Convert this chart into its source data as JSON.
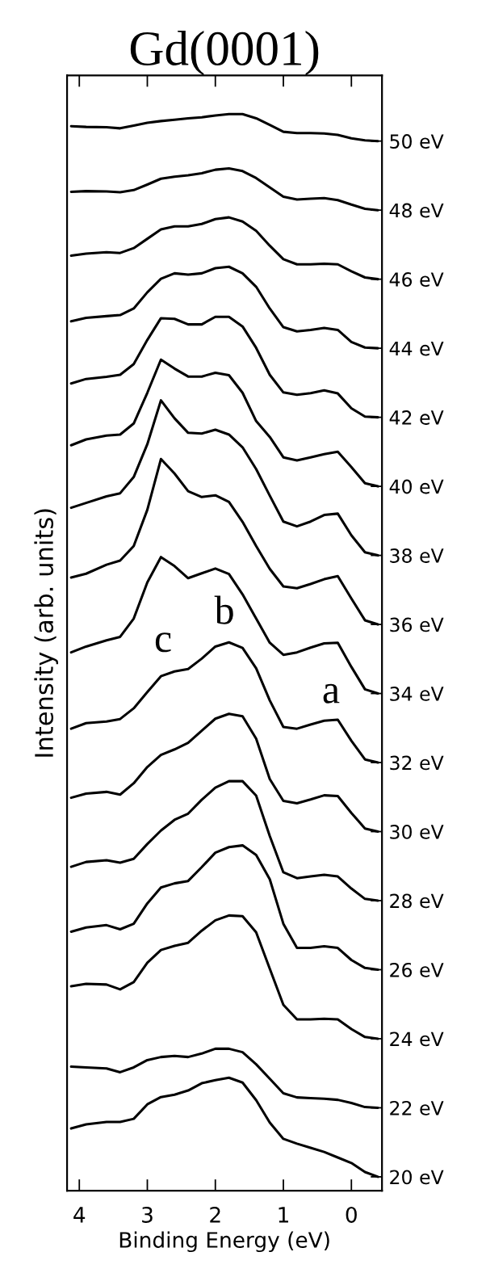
{
  "chart_data": {
    "type": "line",
    "title": "Gd(0001)",
    "xlabel": "Binding Energy (eV)",
    "ylabel": "Intensity (arb. units)",
    "x": [
      4.12,
      3.9,
      3.6,
      3.4,
      3.2,
      3.0,
      2.8,
      2.6,
      2.4,
      2.2,
      2.0,
      1.8,
      1.6,
      1.4,
      1.2,
      1.0,
      0.8,
      0.6,
      0.4,
      0.2,
      0.0,
      -0.2,
      -0.39
    ],
    "xlim": [
      4.18,
      -0.45
    ],
    "xticks": [
      4,
      3,
      2,
      1,
      0
    ],
    "ylim": [
      19.6,
      51.9
    ],
    "yticks": [
      {
        "value": 20,
        "label": "20 eV"
      },
      {
        "value": 22,
        "label": "22 eV"
      },
      {
        "value": 24,
        "label": "24 eV"
      },
      {
        "value": 26,
        "label": "26 eV"
      },
      {
        "value": 28,
        "label": "28 eV"
      },
      {
        "value": 30,
        "label": "30 eV"
      },
      {
        "value": 32,
        "label": "32 eV"
      },
      {
        "value": 34,
        "label": "34 eV"
      },
      {
        "value": 36,
        "label": "36 eV"
      },
      {
        "value": 38,
        "label": "38 eV"
      },
      {
        "value": 40,
        "label": "40 eV"
      },
      {
        "value": 42,
        "label": "42 eV"
      },
      {
        "value": 44,
        "label": "44 eV"
      },
      {
        "value": 46,
        "label": "46 eV"
      },
      {
        "value": 48,
        "label": "48 eV"
      },
      {
        "value": 50,
        "label": "50 eV"
      }
    ],
    "series": [
      {
        "color": "#000000",
        "values": [
          50.43,
          50.41,
          50.4,
          50.37,
          50.45,
          50.53,
          50.58,
          50.62,
          50.66,
          50.69,
          50.74,
          50.78,
          50.78,
          50.66,
          50.47,
          50.27,
          50.23,
          50.23,
          50.22,
          50.18,
          50.08,
          50.02,
          50.0
        ]
      },
      {
        "color": "#000000",
        "values": [
          48.53,
          48.55,
          48.54,
          48.52,
          48.58,
          48.74,
          48.91,
          48.97,
          49.01,
          49.07,
          49.17,
          49.21,
          49.13,
          48.93,
          48.66,
          48.39,
          48.31,
          48.33,
          48.35,
          48.29,
          48.16,
          48.04,
          48.0
        ]
      },
      {
        "color": "#000000",
        "values": [
          46.68,
          46.74,
          46.78,
          46.76,
          46.9,
          47.17,
          47.44,
          47.53,
          47.53,
          47.6,
          47.74,
          47.79,
          47.67,
          47.4,
          46.97,
          46.58,
          46.43,
          46.43,
          46.45,
          46.43,
          46.23,
          46.05,
          46.0
        ]
      },
      {
        "color": "#000000",
        "values": [
          44.78,
          44.88,
          44.93,
          44.96,
          45.15,
          45.62,
          46.01,
          46.17,
          46.13,
          46.17,
          46.32,
          46.36,
          46.17,
          45.78,
          45.15,
          44.61,
          44.49,
          44.53,
          44.59,
          44.53,
          44.18,
          44.02,
          44.0
        ]
      },
      {
        "color": "#000000",
        "values": [
          42.98,
          43.11,
          43.17,
          43.23,
          43.54,
          44.24,
          44.87,
          44.85,
          44.69,
          44.69,
          44.91,
          44.91,
          44.63,
          44.01,
          43.23,
          42.72,
          42.65,
          42.7,
          42.78,
          42.69,
          42.26,
          42.02,
          42.0
        ]
      },
      {
        "color": "#000000",
        "values": [
          41.19,
          41.36,
          41.47,
          41.5,
          41.82,
          42.71,
          43.67,
          43.41,
          43.18,
          43.18,
          43.29,
          43.22,
          42.71,
          41.89,
          41.43,
          40.84,
          40.75,
          40.84,
          40.93,
          41.0,
          40.56,
          40.09,
          40.0
        ]
      },
      {
        "color": "#000000",
        "values": [
          39.38,
          39.52,
          39.71,
          39.8,
          40.27,
          41.22,
          42.49,
          41.97,
          41.55,
          41.53,
          41.64,
          41.5,
          41.13,
          40.5,
          39.73,
          38.98,
          38.84,
          38.98,
          39.17,
          39.21,
          38.58,
          38.09,
          38.0
        ]
      },
      {
        "color": "#000000",
        "values": [
          37.36,
          37.47,
          37.73,
          37.85,
          38.27,
          39.32,
          40.79,
          40.37,
          39.86,
          39.69,
          39.74,
          39.55,
          38.97,
          38.27,
          37.61,
          37.1,
          37.05,
          37.17,
          37.31,
          37.4,
          36.75,
          36.12,
          36.0
        ]
      },
      {
        "color": "#000000",
        "values": [
          35.19,
          35.36,
          35.54,
          35.64,
          36.17,
          37.22,
          37.95,
          37.69,
          37.34,
          37.48,
          37.62,
          37.46,
          36.87,
          36.17,
          35.47,
          35.12,
          35.19,
          35.33,
          35.45,
          35.47,
          34.77,
          34.12,
          34.0
        ]
      },
      {
        "color": "#000000",
        "values": [
          32.98,
          33.14,
          33.19,
          33.26,
          33.57,
          34.04,
          34.5,
          34.64,
          34.71,
          35.01,
          35.36,
          35.48,
          35.32,
          34.73,
          33.8,
          33.03,
          32.98,
          33.1,
          33.21,
          33.24,
          32.63,
          32.09,
          32.0
        ]
      },
      {
        "color": "#000000",
        "values": [
          30.98,
          31.1,
          31.15,
          31.07,
          31.4,
          31.87,
          32.22,
          32.38,
          32.57,
          32.92,
          33.27,
          33.41,
          33.34,
          32.69,
          31.52,
          30.89,
          30.82,
          30.93,
          31.05,
          31.03,
          30.54,
          30.09,
          30.0
        ]
      },
      {
        "color": "#000000",
        "values": [
          28.98,
          29.12,
          29.17,
          29.1,
          29.21,
          29.64,
          30.03,
          30.34,
          30.52,
          30.92,
          31.27,
          31.46,
          31.46,
          31.04,
          29.87,
          28.82,
          28.65,
          28.7,
          28.75,
          28.7,
          28.35,
          28.05,
          28.0
        ]
      },
      {
        "color": "#000000",
        "values": [
          27.1,
          27.22,
          27.29,
          27.17,
          27.33,
          27.92,
          28.38,
          28.5,
          28.57,
          28.97,
          29.39,
          29.55,
          29.6,
          29.32,
          28.62,
          27.33,
          26.63,
          26.63,
          26.68,
          26.63,
          26.28,
          26.05,
          26.0
        ]
      },
      {
        "color": "#000000",
        "values": [
          25.52,
          25.59,
          25.57,
          25.43,
          25.64,
          26.2,
          26.57,
          26.69,
          26.78,
          27.13,
          27.43,
          27.57,
          27.55,
          27.08,
          26.03,
          24.98,
          24.56,
          24.56,
          24.58,
          24.56,
          24.28,
          24.05,
          24.0
        ]
      },
      {
        "color": "#000000",
        "values": [
          23.19,
          23.17,
          23.14,
          23.03,
          23.17,
          23.38,
          23.47,
          23.5,
          23.47,
          23.57,
          23.71,
          23.71,
          23.61,
          23.26,
          22.84,
          22.42,
          22.3,
          22.28,
          22.26,
          22.23,
          22.14,
          22.02,
          22.0
        ]
      },
      {
        "color": "#000000",
        "values": [
          21.4,
          21.52,
          21.59,
          21.59,
          21.68,
          22.1,
          22.31,
          22.38,
          22.5,
          22.71,
          22.8,
          22.87,
          22.73,
          22.22,
          21.57,
          21.1,
          20.96,
          20.84,
          20.72,
          20.56,
          20.4,
          20.14,
          20.0
        ]
      }
    ],
    "annotations": [
      "c",
      "b",
      "a"
    ]
  }
}
